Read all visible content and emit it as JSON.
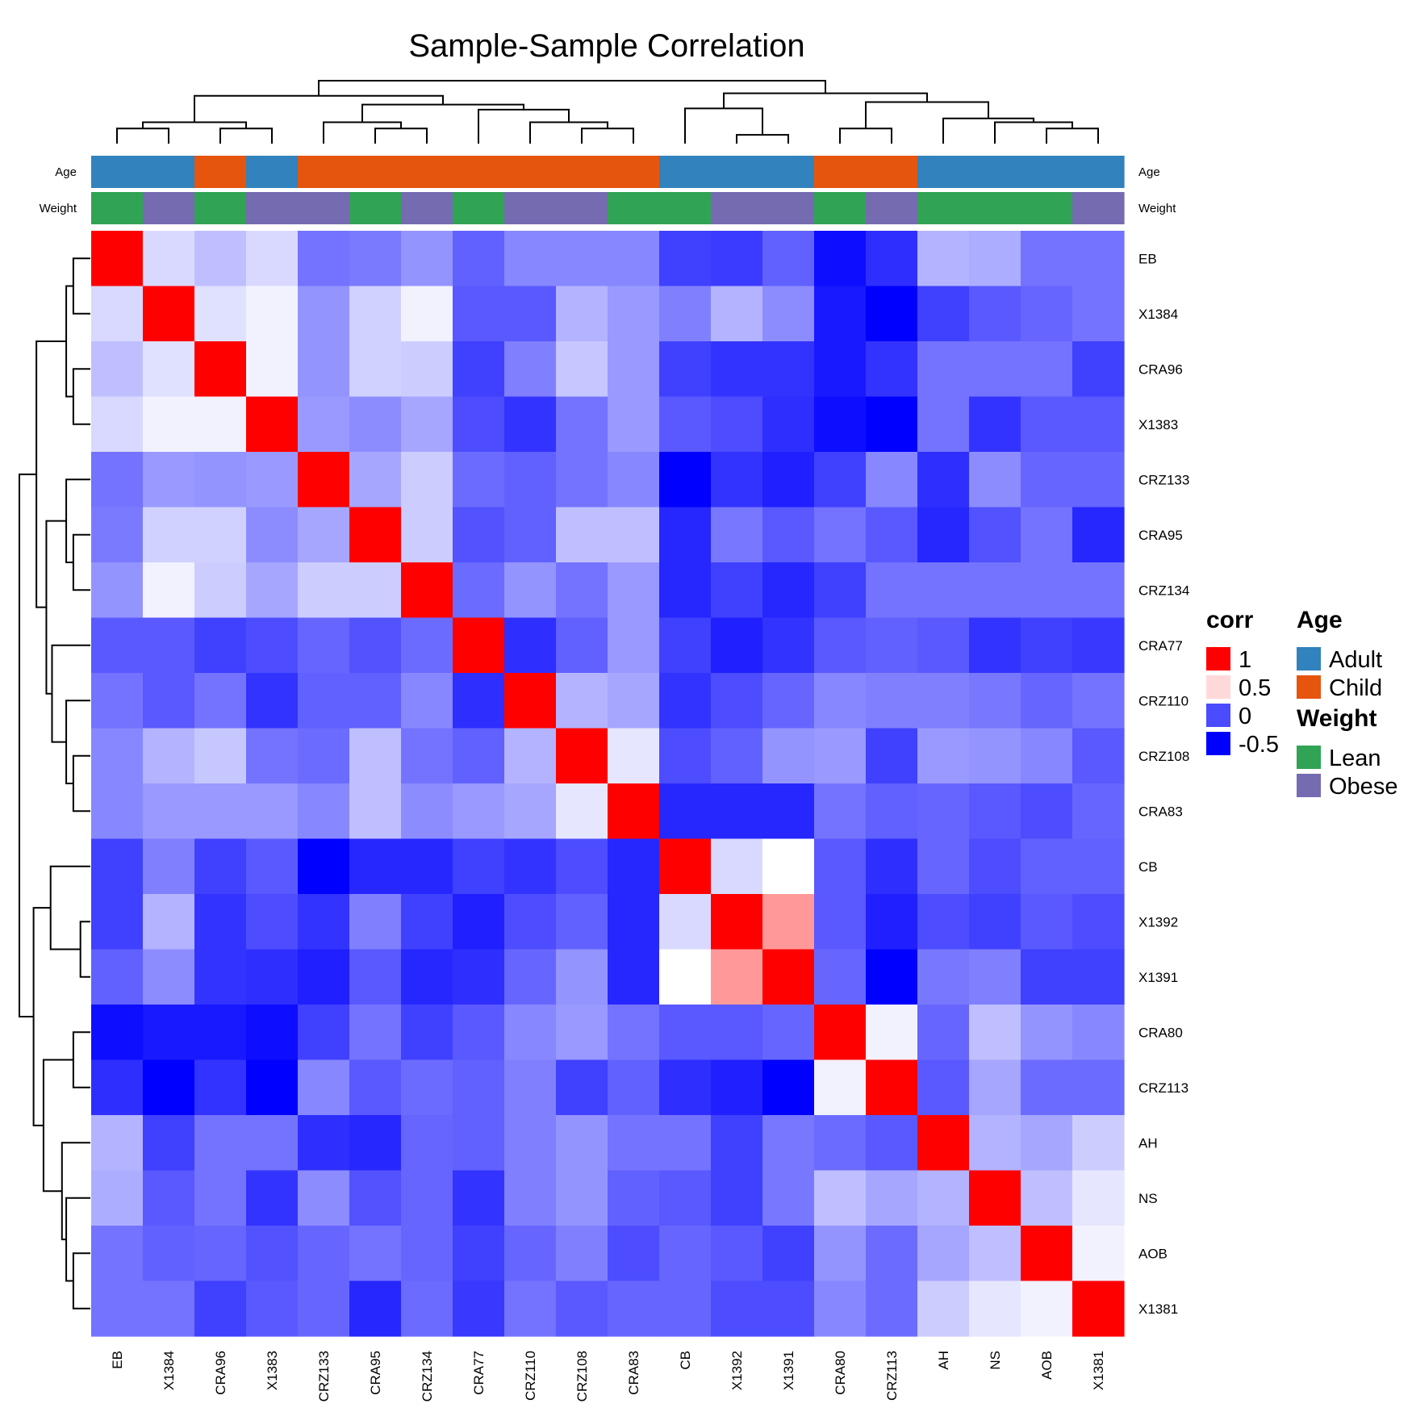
{
  "chart_data": {
    "type": "heatmap",
    "title": "Sample-Sample Correlation",
    "columns": [
      "EB",
      "X1384",
      "CRA96",
      "X1383",
      "CRZ133",
      "CRA95",
      "CRZ134",
      "CRA77",
      "CRZ110",
      "CRZ108",
      "CRA83",
      "CB",
      "X1392",
      "X1391",
      "CRA80",
      "CRZ113",
      "AH",
      "NS",
      "AOB",
      "X1381"
    ],
    "rows": [
      "EB",
      "X1384",
      "CRA96",
      "X1383",
      "CRZ133",
      "CRA95",
      "CRZ134",
      "CRA77",
      "CRZ110",
      "CRZ108",
      "CRA83",
      "CB",
      "X1392",
      "X1391",
      "CRA80",
      "CRZ113",
      "AH",
      "NS",
      "AOB",
      "X1381"
    ],
    "values": [
      [
        1.0,
        0.35,
        0.25,
        0.35,
        -0.05,
        -0.02,
        0.08,
        -0.12,
        0.03,
        0.03,
        0.03,
        -0.25,
        -0.27,
        -0.12,
        -0.45,
        -0.32,
        0.2,
        0.18,
        -0.05,
        -0.05
      ],
      [
        0.35,
        1.0,
        0.38,
        0.45,
        0.08,
        0.32,
        0.45,
        -0.15,
        -0.15,
        0.2,
        0.1,
        0.0,
        0.2,
        0.05,
        -0.4,
        -0.5,
        -0.25,
        -0.15,
        -0.1,
        -0.05
      ],
      [
        0.25,
        0.38,
        1.0,
        0.45,
        0.08,
        0.32,
        0.3,
        -0.25,
        0.0,
        0.28,
        0.1,
        -0.25,
        -0.3,
        -0.3,
        -0.4,
        -0.3,
        -0.05,
        -0.05,
        -0.05,
        -0.25
      ],
      [
        0.35,
        0.45,
        0.45,
        1.0,
        0.1,
        0.05,
        0.15,
        -0.2,
        -0.3,
        -0.05,
        0.1,
        -0.15,
        -0.2,
        -0.32,
        -0.45,
        -0.5,
        -0.05,
        -0.3,
        -0.15,
        -0.15
      ],
      [
        -0.05,
        0.1,
        0.08,
        0.1,
        1.0,
        0.15,
        0.3,
        -0.08,
        -0.12,
        -0.05,
        0.03,
        -0.5,
        -0.3,
        -0.38,
        -0.25,
        0.03,
        -0.32,
        0.05,
        -0.1,
        -0.1
      ],
      [
        -0.02,
        0.32,
        0.32,
        0.05,
        0.15,
        1.0,
        0.3,
        -0.18,
        -0.12,
        0.25,
        0.25,
        -0.35,
        -0.03,
        -0.15,
        -0.05,
        -0.15,
        -0.35,
        -0.18,
        -0.05,
        -0.35
      ],
      [
        0.08,
        0.45,
        0.3,
        0.15,
        0.3,
        0.3,
        1.0,
        -0.08,
        0.08,
        -0.05,
        0.1,
        -0.35,
        -0.25,
        -0.35,
        -0.25,
        -0.05,
        -0.05,
        -0.05,
        -0.05,
        -0.05
      ],
      [
        -0.15,
        -0.15,
        -0.25,
        -0.2,
        -0.1,
        -0.18,
        -0.08,
        1.0,
        -0.32,
        -0.12,
        0.1,
        -0.25,
        -0.38,
        -0.3,
        -0.15,
        -0.12,
        -0.15,
        -0.3,
        -0.25,
        -0.28
      ],
      [
        -0.05,
        -0.15,
        -0.05,
        -0.3,
        -0.12,
        -0.12,
        0.03,
        -0.32,
        1.0,
        0.2,
        0.15,
        -0.3,
        -0.2,
        -0.1,
        0.03,
        0.0,
        0.0,
        -0.03,
        -0.1,
        -0.05
      ],
      [
        0.03,
        0.2,
        0.28,
        -0.05,
        -0.08,
        0.25,
        -0.05,
        -0.12,
        0.2,
        1.0,
        0.4,
        -0.2,
        -0.12,
        0.08,
        0.1,
        -0.25,
        0.1,
        0.08,
        0.03,
        -0.15
      ],
      [
        0.03,
        0.1,
        0.1,
        0.1,
        0.03,
        0.25,
        0.05,
        0.1,
        0.15,
        0.4,
        1.0,
        -0.35,
        -0.35,
        -0.35,
        -0.05,
        -0.12,
        -0.1,
        -0.15,
        -0.2,
        -0.1
      ],
      [
        -0.25,
        0.0,
        -0.25,
        -0.15,
        -0.5,
        -0.35,
        -0.35,
        -0.25,
        -0.3,
        -0.2,
        -0.35,
        1.0,
        0.35,
        0.5,
        -0.15,
        -0.32,
        -0.1,
        -0.2,
        -0.12,
        -0.12
      ],
      [
        -0.25,
        0.2,
        -0.3,
        -0.2,
        -0.3,
        0.0,
        -0.25,
        -0.38,
        -0.2,
        -0.12,
        -0.35,
        0.35,
        1.0,
        0.7,
        -0.15,
        -0.38,
        -0.2,
        -0.25,
        -0.15,
        -0.2
      ],
      [
        -0.12,
        0.05,
        -0.3,
        -0.32,
        -0.38,
        -0.15,
        -0.35,
        -0.32,
        -0.1,
        0.08,
        -0.35,
        0.5,
        0.7,
        1.0,
        -0.1,
        -0.5,
        -0.03,
        0.0,
        -0.25,
        -0.25
      ],
      [
        -0.45,
        -0.4,
        -0.4,
        -0.45,
        -0.25,
        -0.05,
        -0.25,
        -0.15,
        0.03,
        0.1,
        -0.05,
        -0.15,
        -0.15,
        -0.1,
        1.0,
        0.45,
        -0.1,
        0.25,
        0.08,
        0.03
      ],
      [
        -0.32,
        -0.5,
        -0.3,
        -0.5,
        0.03,
        -0.15,
        -0.08,
        -0.12,
        0.0,
        -0.25,
        -0.12,
        -0.32,
        -0.38,
        -0.5,
        0.45,
        1.0,
        -0.15,
        0.15,
        -0.08,
        -0.08
      ],
      [
        0.2,
        -0.25,
        -0.05,
        -0.05,
        -0.32,
        -0.35,
        -0.1,
        -0.12,
        0.0,
        0.08,
        -0.05,
        -0.05,
        -0.25,
        -0.03,
        -0.08,
        -0.15,
        1.0,
        0.2,
        0.15,
        0.3
      ],
      [
        0.18,
        -0.15,
        -0.05,
        -0.3,
        0.05,
        -0.18,
        -0.1,
        -0.3,
        0.0,
        0.08,
        -0.12,
        -0.15,
        -0.25,
        -0.03,
        0.25,
        0.15,
        0.2,
        1.0,
        0.25,
        0.4
      ],
      [
        -0.05,
        -0.12,
        -0.1,
        -0.18,
        -0.1,
        -0.05,
        -0.1,
        -0.25,
        -0.1,
        0.0,
        -0.2,
        -0.1,
        -0.15,
        -0.25,
        0.08,
        -0.08,
        0.15,
        0.25,
        1.0,
        0.45
      ],
      [
        -0.05,
        -0.05,
        -0.25,
        -0.15,
        -0.1,
        -0.35,
        -0.08,
        -0.28,
        -0.05,
        -0.15,
        -0.1,
        -0.1,
        -0.2,
        -0.2,
        0.03,
        -0.08,
        0.3,
        0.4,
        0.45,
        1.0
      ]
    ],
    "annotations": {
      "Age": [
        "Adult",
        "Adult",
        "Child",
        "Adult",
        "Child",
        "Child",
        "Child",
        "Child",
        "Child",
        "Child",
        "Child",
        "Adult",
        "Adult",
        "Adult",
        "Child",
        "Child",
        "Adult",
        "Adult",
        "Adult",
        "Adult"
      ],
      "Weight": [
        "Lean",
        "Obese",
        "Lean",
        "Obese",
        "Obese",
        "Lean",
        "Obese",
        "Lean",
        "Obese",
        "Obese",
        "Lean",
        "Lean",
        "Obese",
        "Obese",
        "Lean",
        "Obese",
        "Lean",
        "Lean",
        "Lean",
        "Obese"
      ]
    },
    "annotation_labels": [
      "Age",
      "Weight"
    ],
    "annotation_colors": {
      "Adult": "#3182bd",
      "Child": "#e6550d",
      "Lean": "#31a354",
      "Obese": "#756bb1"
    },
    "color_scale": {
      "stops": [
        {
          "value": -0.5,
          "color": "#0000ff"
        },
        {
          "value": 0.5,
          "color": "#ffffff"
        },
        {
          "value": 1.0,
          "color": "#ff0000"
        }
      ]
    },
    "legend": {
      "corr_title": "corr",
      "corr_ticks": [
        {
          "label": "1",
          "color": "#ff0000"
        },
        {
          "label": "0.5",
          "color": "#ffd9d9"
        },
        {
          "label": "0",
          "color": "#4b4bff"
        },
        {
          "label": "-0.5",
          "color": "#0000ff"
        }
      ],
      "groups": [
        {
          "title": "Age",
          "items": [
            "Adult",
            "Child"
          ]
        },
        {
          "title": "Weight",
          "items": [
            "Lean",
            "Obese"
          ]
        }
      ],
      "placement": "right"
    },
    "dendrograms": {
      "column_merges": [
        [
          0,
          1,
          1,
          0.12
        ],
        [
          2,
          3,
          1,
          0.12
        ],
        [
          20,
          21,
          2,
          0.17
        ],
        [
          5,
          6,
          1,
          0.12
        ],
        [
          4,
          23,
          1,
          0.17
        ],
        [
          9,
          10,
          1,
          0.12
        ],
        [
          8,
          25,
          1,
          0.17
        ],
        [
          7,
          26,
          1,
          0.27
        ],
        [
          24,
          27,
          2,
          0.31
        ],
        [
          22,
          28,
          3,
          0.38
        ],
        [
          12,
          13,
          1,
          0.07
        ],
        [
          11,
          30,
          1,
          0.28
        ],
        [
          14,
          15,
          1,
          0.12
        ],
        [
          18,
          19,
          1,
          0.12
        ],
        [
          17,
          33,
          1,
          0.17
        ],
        [
          16,
          34,
          1,
          0.2
        ],
        [
          32,
          35,
          2,
          0.33
        ],
        [
          31,
          36,
          3,
          0.4
        ],
        [
          29,
          37,
          4,
          0.5
        ]
      ],
      "row_merges": [
        [
          0,
          1,
          1,
          0.12
        ],
        [
          2,
          3,
          1,
          0.12
        ],
        [
          20,
          21,
          2,
          0.17
        ],
        [
          5,
          6,
          1,
          0.12
        ],
        [
          4,
          23,
          1,
          0.17
        ],
        [
          9,
          10,
          1,
          0.12
        ],
        [
          8,
          25,
          1,
          0.17
        ],
        [
          7,
          26,
          1,
          0.27
        ],
        [
          24,
          27,
          2,
          0.31
        ],
        [
          22,
          28,
          3,
          0.38
        ],
        [
          12,
          13,
          1,
          0.07
        ],
        [
          11,
          30,
          1,
          0.28
        ],
        [
          14,
          15,
          1,
          0.12
        ],
        [
          18,
          19,
          1,
          0.12
        ],
        [
          17,
          33,
          1,
          0.17
        ],
        [
          16,
          34,
          1,
          0.2
        ],
        [
          32,
          35,
          2,
          0.33
        ],
        [
          31,
          36,
          3,
          0.4
        ],
        [
          29,
          37,
          4,
          0.5
        ]
      ]
    }
  }
}
